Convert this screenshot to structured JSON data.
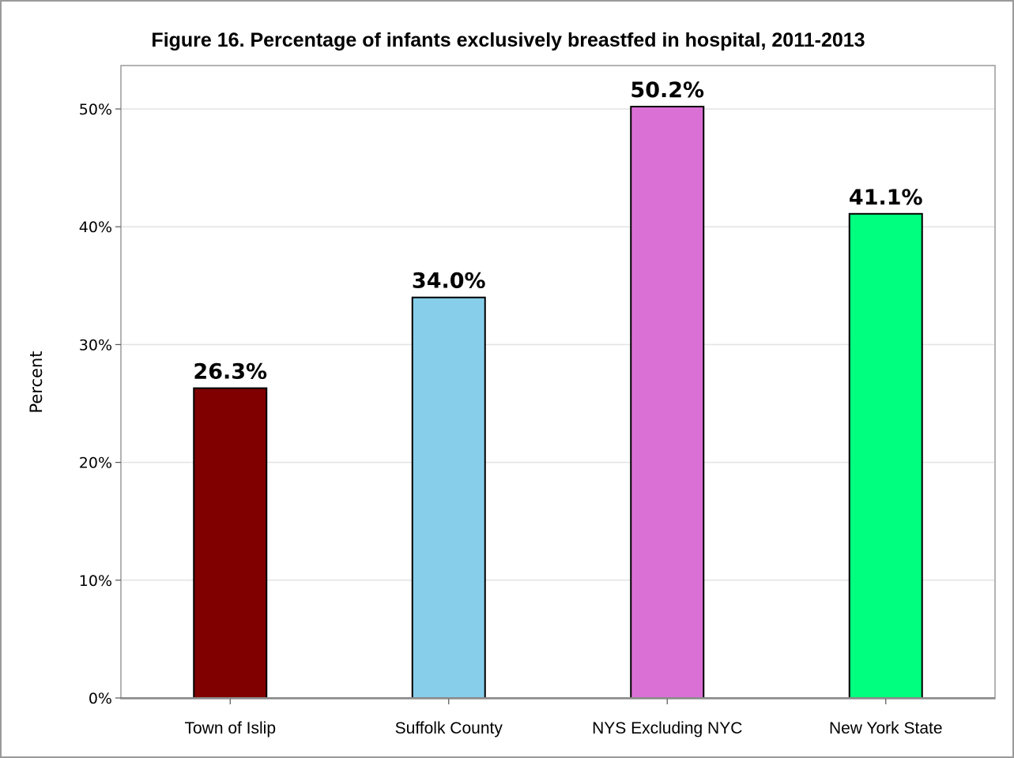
{
  "chart_data": {
    "type": "bar",
    "title": "Figure 16. Percentage of infants exclusively breastfed in hospital, 2011-2013",
    "xlabel": "",
    "ylabel": "Percent",
    "categories": [
      "Town of Islip",
      "Suffolk County",
      "NYS Excluding NYC",
      "New York State"
    ],
    "values": [
      26.3,
      34.0,
      50.2,
      41.1
    ],
    "value_labels": [
      "26.3%",
      "34.0%",
      "50.2%",
      "41.1%"
    ],
    "colors": [
      "#800000",
      "#87CEEB",
      "#DA70D6",
      "#00FF7F"
    ],
    "ylim": [
      0,
      53
    ],
    "yticks": [
      0,
      10,
      20,
      30,
      40,
      50
    ],
    "ytick_labels": [
      "0%",
      "10%",
      "20%",
      "30%",
      "40%",
      "50%"
    ],
    "grid": true,
    "legend": "none"
  }
}
